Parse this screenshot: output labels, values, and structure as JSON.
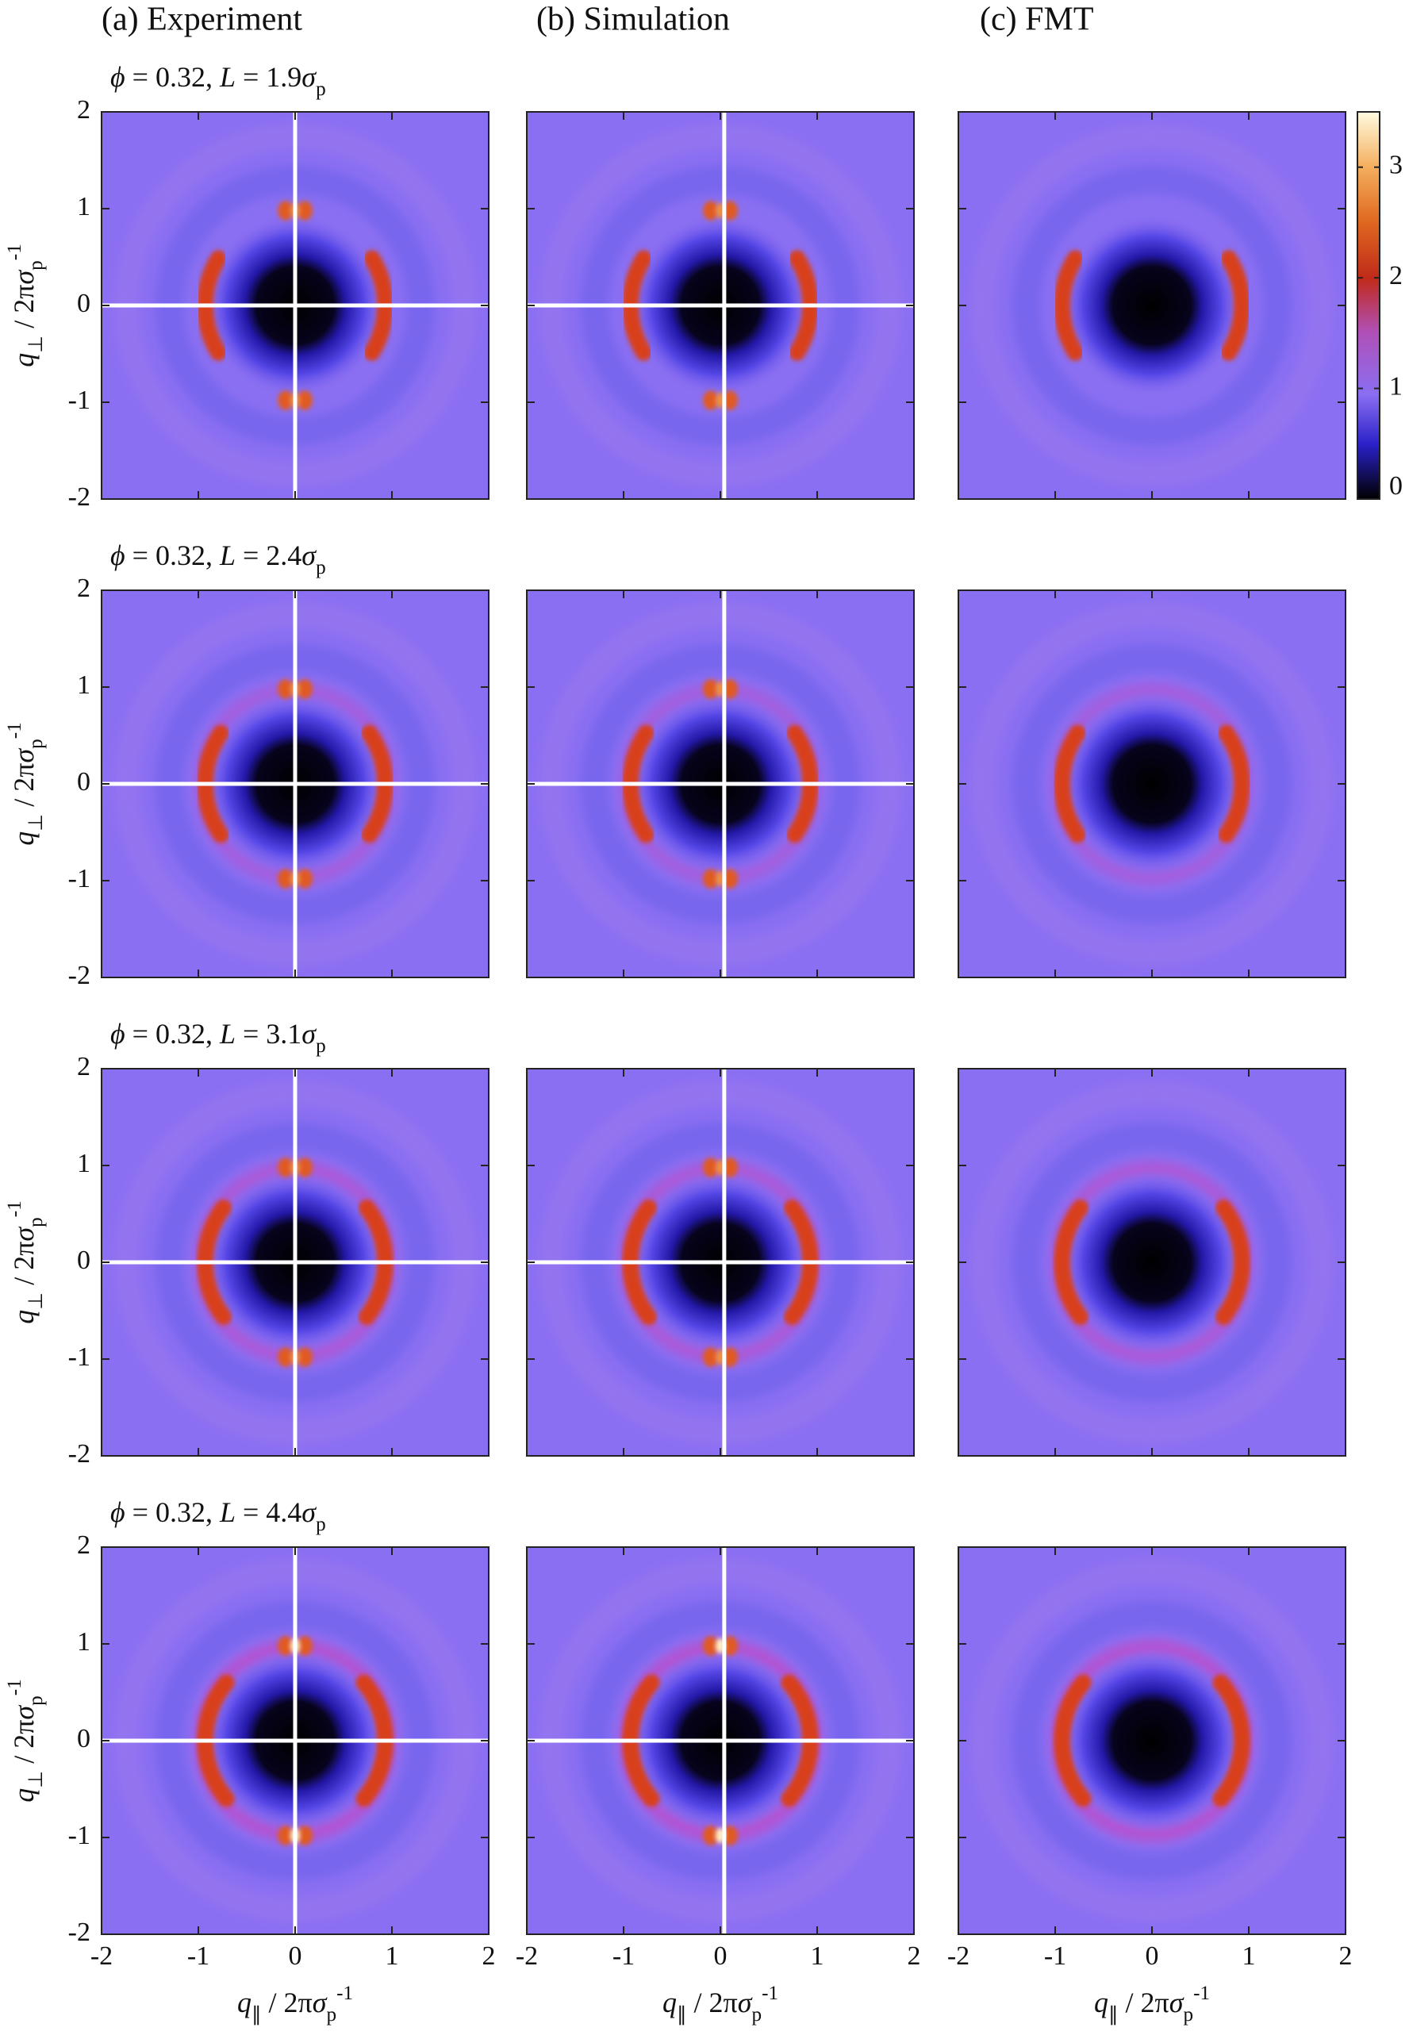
{
  "chart_data": {
    "type": "heatmap",
    "columns": [
      "(a) Experiment",
      "(b) Simulation",
      "(c) FMT"
    ],
    "rows": [
      [
        {
          "text": "ϕ",
          "style": "italic"
        },
        {
          "text": " = 0.32, "
        },
        {
          "text": "L",
          "style": "italic"
        },
        {
          "text": " = 1.9"
        },
        {
          "text": "σ",
          "style": "italic"
        },
        {
          "text": "p",
          "style": "sub"
        }
      ],
      [
        {
          "text": "ϕ",
          "style": "italic"
        },
        {
          "text": " = 0.32, "
        },
        {
          "text": "L",
          "style": "italic"
        },
        {
          "text": " = 2.4"
        },
        {
          "text": "σ",
          "style": "italic"
        },
        {
          "text": "p",
          "style": "sub"
        }
      ],
      [
        {
          "text": "ϕ",
          "style": "italic"
        },
        {
          "text": " = 0.32, "
        },
        {
          "text": "L",
          "style": "italic"
        },
        {
          "text": " = 3.1"
        },
        {
          "text": "σ",
          "style": "italic"
        },
        {
          "text": "p",
          "style": "sub"
        }
      ],
      [
        {
          "text": "ϕ",
          "style": "italic"
        },
        {
          "text": " = 0.32, "
        },
        {
          "text": "L",
          "style": "italic"
        },
        {
          "text": " = 4.4"
        },
        {
          "text": "σ",
          "style": "italic"
        },
        {
          "text": "p",
          "style": "sub"
        }
      ]
    ],
    "xlabel": [
      {
        "text": "q",
        "style": "italic"
      },
      {
        "text": "∥",
        "style": "sub"
      },
      {
        "text": " / 2π"
      },
      {
        "text": "σ",
        "style": "italic"
      },
      {
        "text": "p",
        "style": "sub"
      },
      {
        "text": "-1",
        "style": "sup"
      }
    ],
    "ylabel": [
      {
        "text": "q",
        "style": "italic"
      },
      {
        "text": "⊥",
        "style": "sub"
      },
      {
        "text": " / 2π"
      },
      {
        "text": "σ",
        "style": "italic"
      },
      {
        "text": "p",
        "style": "sub"
      },
      {
        "text": "-1",
        "style": "sup"
      }
    ],
    "xlim": [
      -2,
      2
    ],
    "ylim": [
      -2,
      2
    ],
    "xticks": [
      -2,
      -1,
      0,
      1,
      2
    ],
    "yticks": [
      -2,
      -1,
      0,
      1,
      2
    ],
    "colorbar": {
      "lim": [
        0,
        3.5
      ],
      "ticks": [
        0,
        1,
        2,
        3
      ]
    }
  }
}
